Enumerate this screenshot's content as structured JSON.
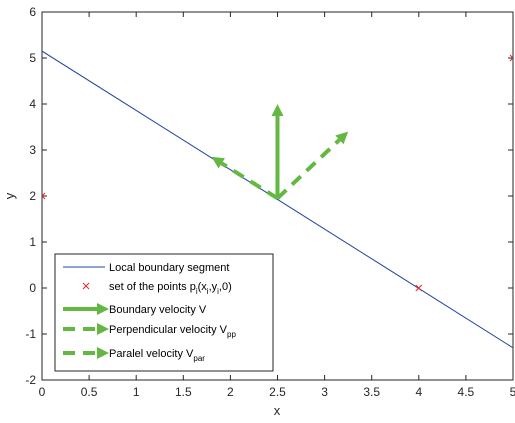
{
  "chart_data": {
    "type": "line",
    "xlabel": "x",
    "ylabel": "y",
    "xlim": [
      0,
      5
    ],
    "ylim": [
      -2,
      6
    ],
    "xticks": [
      "0",
      "0.5",
      "1",
      "1.5",
      "2",
      "2.5",
      "3",
      "3.5",
      "4",
      "4.5",
      "5"
    ],
    "yticks": [
      "-2",
      "-1",
      "0",
      "1",
      "2",
      "3",
      "4",
      "5",
      "6"
    ],
    "grid": false,
    "legend_position": "bottom-left",
    "series": [
      {
        "name": "Local boundary segment",
        "style": "line",
        "color": "#2346a0",
        "x": [
          0,
          5
        ],
        "y": [
          5.15,
          -1.3
        ]
      },
      {
        "name": "set of the points p_i(x_i,y_i,0)",
        "style": "marker-x",
        "color": "#e8262b",
        "x": [
          0,
          4,
          5
        ],
        "y": [
          2,
          0,
          5
        ]
      },
      {
        "name": "Boundary velocity V",
        "style": "arrow-solid",
        "color": "#62b841",
        "x": [
          2.5,
          2.5
        ],
        "y": [
          1.95,
          4.0
        ]
      },
      {
        "name": "Perpendicular velocity V_pp",
        "style": "arrow-dashed",
        "color": "#62b841",
        "x": [
          2.5,
          3.25
        ],
        "y": [
          1.95,
          3.4
        ]
      },
      {
        "name": "Paralel velocity V_par",
        "style": "arrow-dashed",
        "color": "#62b841",
        "x": [
          2.5,
          1.8
        ],
        "y": [
          1.95,
          2.85
        ]
      }
    ],
    "legend": [
      {
        "text": "Local boundary segment",
        "sub": ""
      },
      {
        "text": "set of the points p",
        "sub": "i",
        "rest": "(x",
        "sub2": "i",
        "rest2": ",y",
        "sub3": "i",
        "rest3": ",0)"
      },
      {
        "text": "Boundary velocity V",
        "sub": ""
      },
      {
        "text": "Perpendicular velocity V",
        "sub": "pp"
      },
      {
        "text": "Paralel velocity V",
        "sub": "par"
      }
    ]
  }
}
